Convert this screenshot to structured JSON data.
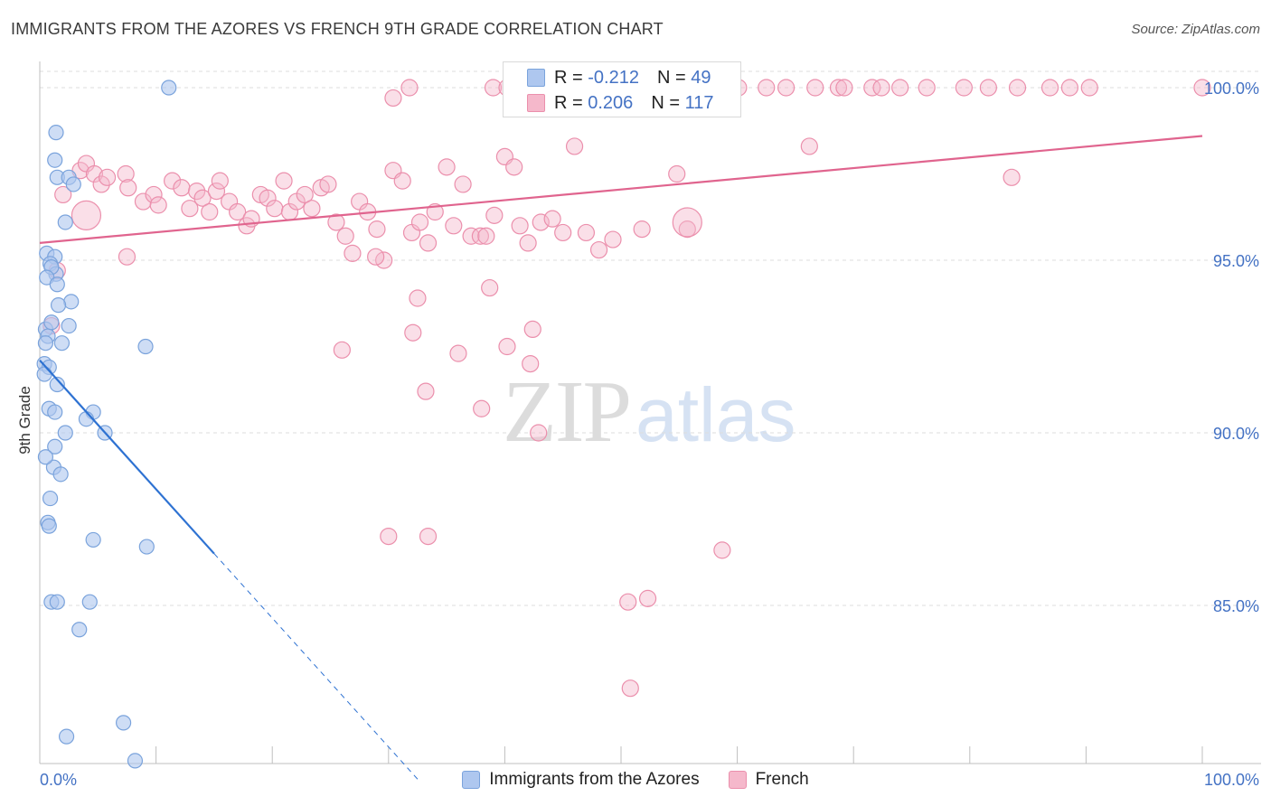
{
  "title": "IMMIGRANTS FROM THE AZORES VS FRENCH 9TH GRADE CORRELATION CHART",
  "source": "Source: ZipAtlas.com",
  "watermark": {
    "zip": "ZIP",
    "atlas": "atlas"
  },
  "legend_top": {
    "rows": [
      {
        "r_label": "R =",
        "r_value": "-0.212",
        "n_label": "N =",
        "n_value": "49"
      },
      {
        "r_label": "R =",
        "r_value": "0.206",
        "n_label": "N =",
        "n_value": "117"
      }
    ]
  },
  "legend_bottom": [
    {
      "label": "Immigrants from the Azores"
    },
    {
      "label": "French"
    }
  ],
  "colors": {
    "azores_fill": "#aec7ef",
    "azores_stroke": "#7aa3dc",
    "azores_line": "#2e72d2",
    "french_fill": "#f5b8cb",
    "french_stroke": "#eb8fac",
    "french_line": "#e0648e",
    "tick": "#4472c4",
    "grid": "#dddddd"
  },
  "chart_data": {
    "type": "scatter",
    "title": "IMMIGRANTS FROM THE AZORES VS FRENCH 9TH GRADE CORRELATION CHART",
    "xlabel": "",
    "ylabel": "9th Grade",
    "xlim": [
      0,
      100
    ],
    "ylim": [
      80.2,
      100.6
    ],
    "x_tick_labels": [
      {
        "value": 0,
        "label": "0.0%"
      },
      {
        "value": 100,
        "label": "100.0%"
      }
    ],
    "y_tick_labels": [
      {
        "value": 100,
        "label": "100.0%"
      },
      {
        "value": 95,
        "label": "95.0%"
      },
      {
        "value": 90,
        "label": "90.0%"
      },
      {
        "value": 85,
        "label": "85.0%"
      }
    ],
    "series": [
      {
        "name": "Immigrants from the Azores",
        "R": -0.212,
        "N": 49,
        "trend": {
          "x0": 0,
          "y0": 92.1,
          "x1": 15,
          "y1": 86.5,
          "dash_to_x": 32.5
        },
        "points": [
          [
            11.1,
            100.0
          ],
          [
            1.4,
            98.7
          ],
          [
            1.3,
            97.9
          ],
          [
            1.5,
            97.4
          ],
          [
            2.5,
            97.4
          ],
          [
            2.9,
            97.2
          ],
          [
            2.2,
            96.1
          ],
          [
            0.6,
            95.2
          ],
          [
            1.3,
            95.1
          ],
          [
            0.9,
            94.9
          ],
          [
            1.4,
            94.6
          ],
          [
            1.0,
            94.8
          ],
          [
            0.6,
            94.5
          ],
          [
            1.5,
            94.3
          ],
          [
            2.7,
            93.8
          ],
          [
            1.6,
            93.7
          ],
          [
            0.5,
            93.0
          ],
          [
            2.5,
            93.1
          ],
          [
            0.7,
            92.8
          ],
          [
            1.9,
            92.6
          ],
          [
            0.5,
            92.6
          ],
          [
            9.1,
            92.5
          ],
          [
            0.4,
            92.0
          ],
          [
            0.8,
            91.9
          ],
          [
            0.4,
            91.7
          ],
          [
            1.5,
            91.4
          ],
          [
            0.8,
            90.7
          ],
          [
            1.3,
            90.6
          ],
          [
            4.6,
            90.6
          ],
          [
            4.0,
            90.4
          ],
          [
            2.2,
            90.0
          ],
          [
            5.6,
            90.0
          ],
          [
            1.3,
            89.6
          ],
          [
            1.2,
            89.0
          ],
          [
            1.8,
            88.8
          ],
          [
            0.9,
            88.1
          ],
          [
            0.7,
            87.4
          ],
          [
            0.8,
            87.3
          ],
          [
            4.6,
            86.9
          ],
          [
            9.2,
            86.7
          ],
          [
            1.0,
            85.1
          ],
          [
            1.5,
            85.1
          ],
          [
            4.3,
            85.1
          ],
          [
            3.4,
            84.3
          ],
          [
            7.2,
            81.6
          ],
          [
            2.3,
            81.2
          ],
          [
            8.2,
            80.5
          ],
          [
            0.5,
            89.3
          ],
          [
            1.0,
            93.2
          ]
        ]
      },
      {
        "name": "French",
        "R": 0.206,
        "N": 117,
        "trend": {
          "x0": 0,
          "y0": 95.5,
          "x1": 100,
          "y1": 98.6
        },
        "points": [
          [
            30.4,
            99.7
          ],
          [
            31.8,
            100.0
          ],
          [
            39.0,
            100.0
          ],
          [
            40.2,
            100.0
          ],
          [
            41.2,
            100.0
          ],
          [
            46.2,
            100.0
          ],
          [
            47.0,
            100.0
          ],
          [
            57.7,
            100.0
          ],
          [
            60.1,
            100.0
          ],
          [
            62.5,
            100.0
          ],
          [
            64.2,
            100.0
          ],
          [
            66.7,
            100.0
          ],
          [
            68.7,
            100.0
          ],
          [
            69.2,
            100.0
          ],
          [
            71.6,
            100.0
          ],
          [
            72.4,
            100.0
          ],
          [
            74.0,
            100.0
          ],
          [
            76.3,
            100.0
          ],
          [
            79.5,
            100.0
          ],
          [
            81.6,
            100.0
          ],
          [
            84.1,
            100.0
          ],
          [
            86.9,
            100.0
          ],
          [
            88.6,
            100.0
          ],
          [
            90.3,
            100.0
          ],
          [
            100.0,
            100.0
          ],
          [
            3.5,
            97.6
          ],
          [
            4.0,
            97.8
          ],
          [
            4.7,
            97.5
          ],
          [
            5.3,
            97.2
          ],
          [
            5.8,
            97.4
          ],
          [
            7.4,
            97.5
          ],
          [
            7.6,
            97.1
          ],
          [
            8.9,
            96.7
          ],
          [
            9.8,
            96.9
          ],
          [
            10.2,
            96.6
          ],
          [
            11.4,
            97.3
          ],
          [
            12.2,
            97.1
          ],
          [
            12.9,
            96.5
          ],
          [
            13.5,
            97.0
          ],
          [
            14.0,
            96.8
          ],
          [
            14.6,
            96.4
          ],
          [
            15.2,
            97.0
          ],
          [
            15.5,
            97.3
          ],
          [
            16.3,
            96.7
          ],
          [
            17.0,
            96.4
          ],
          [
            17.8,
            96.0
          ],
          [
            18.2,
            96.2
          ],
          [
            19.0,
            96.9
          ],
          [
            19.6,
            96.8
          ],
          [
            20.2,
            96.5
          ],
          [
            21.0,
            97.3
          ],
          [
            21.5,
            96.4
          ],
          [
            22.1,
            96.7
          ],
          [
            22.8,
            96.9
          ],
          [
            23.4,
            96.5
          ],
          [
            24.2,
            97.1
          ],
          [
            24.8,
            97.2
          ],
          [
            25.5,
            96.1
          ],
          [
            26.3,
            95.7
          ],
          [
            26.9,
            95.2
          ],
          [
            27.5,
            96.7
          ],
          [
            28.2,
            96.4
          ],
          [
            29.0,
            95.9
          ],
          [
            29.6,
            95.0
          ],
          [
            30.4,
            97.6
          ],
          [
            31.2,
            97.3
          ],
          [
            32.0,
            95.8
          ],
          [
            32.7,
            96.1
          ],
          [
            33.4,
            95.5
          ],
          [
            34.0,
            96.4
          ],
          [
            35.0,
            97.7
          ],
          [
            35.6,
            96.0
          ],
          [
            36.4,
            97.2
          ],
          [
            37.1,
            95.7
          ],
          [
            37.9,
            95.7
          ],
          [
            38.4,
            95.7
          ],
          [
            39.1,
            96.3
          ],
          [
            40.0,
            98.0
          ],
          [
            40.8,
            97.7
          ],
          [
            41.3,
            96.0
          ],
          [
            42.0,
            95.5
          ],
          [
            43.1,
            96.1
          ],
          [
            44.1,
            96.2
          ],
          [
            45.0,
            95.8
          ],
          [
            46.0,
            98.3
          ],
          [
            47.0,
            95.8
          ],
          [
            48.1,
            95.3
          ],
          [
            49.3,
            95.6
          ],
          [
            51.8,
            95.9
          ],
          [
            54.8,
            97.5
          ],
          [
            55.7,
            95.9
          ],
          [
            7.5,
            95.1
          ],
          [
            28.9,
            95.1
          ],
          [
            38.7,
            94.2
          ],
          [
            32.5,
            93.9
          ],
          [
            42.4,
            93.0
          ],
          [
            32.1,
            92.9
          ],
          [
            26.0,
            92.4
          ],
          [
            33.2,
            91.2
          ],
          [
            36.0,
            92.3
          ],
          [
            40.2,
            92.5
          ],
          [
            42.2,
            92.0
          ],
          [
            38.0,
            90.7
          ],
          [
            42.9,
            90.0
          ],
          [
            30.0,
            87.0
          ],
          [
            33.4,
            87.0
          ],
          [
            58.7,
            86.6
          ],
          [
            50.6,
            85.1
          ],
          [
            52.3,
            85.2
          ],
          [
            50.8,
            82.6
          ],
          [
            66.2,
            98.3
          ],
          [
            83.6,
            97.4
          ],
          [
            55.7,
            96.1
          ],
          [
            4.0,
            96.3
          ],
          [
            2.0,
            96.9
          ],
          [
            1.5,
            94.7
          ],
          [
            1.0,
            93.1
          ]
        ]
      }
    ]
  }
}
